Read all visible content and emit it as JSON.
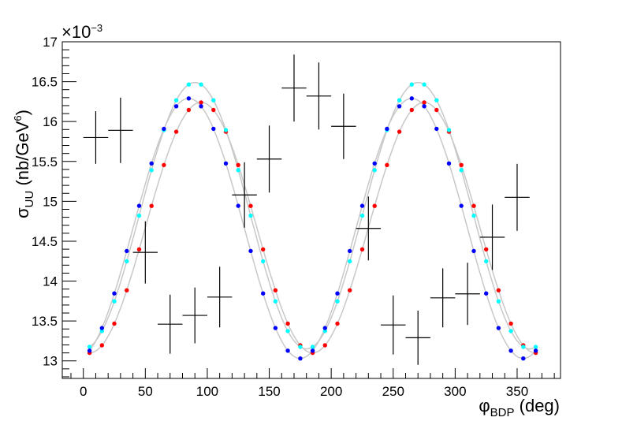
{
  "chart_data": {
    "type": "scatter",
    "title": "",
    "xlabel": {
      "main": "φ",
      "sub": "BDP",
      "unit": " (deg)"
    },
    "ylabel": {
      "main": "σ",
      "sub": "UU",
      "unit_pre": " (nb/GeV",
      "unit_sup": "6",
      "unit_post": ")"
    },
    "y_multiplier": {
      "prefix": "×10",
      "exponent": "−3"
    },
    "xlim": [
      -17,
      385
    ],
    "ylim": [
      12.78,
      17.0
    ],
    "grid": false,
    "x_ticks": [
      "0",
      "50",
      "100",
      "150",
      "200",
      "250",
      "300",
      "350"
    ],
    "y_ticks": [
      "13",
      "13.5",
      "14",
      "14.5",
      "15",
      "15.5",
      "16",
      "16.5",
      "17"
    ],
    "colors": {
      "curve": "#c8c8c8",
      "red": "#ff0000",
      "cyan": "#00ffff",
      "blue": "#0000ff",
      "data": "#000000"
    },
    "model_series": [
      {
        "color": "red",
        "amp": 1.57,
        "mean": 14.67,
        "phase": 5
      },
      {
        "color": "cyan",
        "amp": 1.67,
        "mean": 14.82,
        "phase": 0
      },
      {
        "color": "blue",
        "amp": 1.63,
        "mean": 14.66,
        "phase": -5
      }
    ],
    "model_x": [
      5,
      15,
      25,
      35,
      45,
      55,
      65,
      75,
      85,
      95,
      105,
      115,
      125,
      135,
      145,
      155,
      165,
      175,
      185,
      195,
      205,
      215,
      225,
      235,
      245,
      255,
      265,
      275,
      285,
      295,
      305,
      315,
      325,
      335,
      345,
      355,
      365
    ],
    "data_points": [
      {
        "x": 10,
        "y": 15.8,
        "xerr": 10,
        "yerr": 0.33
      },
      {
        "x": 30,
        "y": 15.89,
        "xerr": 10,
        "yerr": 0.41
      },
      {
        "x": 50,
        "y": 14.36,
        "xerr": 10,
        "yerr": 0.39
      },
      {
        "x": 70,
        "y": 13.46,
        "xerr": 10,
        "yerr": 0.37
      },
      {
        "x": 90,
        "y": 13.57,
        "xerr": 10,
        "yerr": 0.35
      },
      {
        "x": 110,
        "y": 13.8,
        "xerr": 10,
        "yerr": 0.38
      },
      {
        "x": 130,
        "y": 15.08,
        "xerr": 10,
        "yerr": 0.41
      },
      {
        "x": 150,
        "y": 15.53,
        "xerr": 10,
        "yerr": 0.42
      },
      {
        "x": 170,
        "y": 16.42,
        "xerr": 10,
        "yerr": 0.42
      },
      {
        "x": 190,
        "y": 16.32,
        "xerr": 10,
        "yerr": 0.42
      },
      {
        "x": 210,
        "y": 15.94,
        "xerr": 10,
        "yerr": 0.41
      },
      {
        "x": 230,
        "y": 14.66,
        "xerr": 10,
        "yerr": 0.4
      },
      {
        "x": 250,
        "y": 13.45,
        "xerr": 10,
        "yerr": 0.37
      },
      {
        "x": 270,
        "y": 13.29,
        "xerr": 10,
        "yerr": 0.34
      },
      {
        "x": 290,
        "y": 13.79,
        "xerr": 10,
        "yerr": 0.37
      },
      {
        "x": 310,
        "y": 13.84,
        "xerr": 10,
        "yerr": 0.39
      },
      {
        "x": 330,
        "y": 14.55,
        "xerr": 10,
        "yerr": 0.41
      },
      {
        "x": 350,
        "y": 15.05,
        "xerr": 10,
        "yerr": 0.42
      }
    ]
  }
}
